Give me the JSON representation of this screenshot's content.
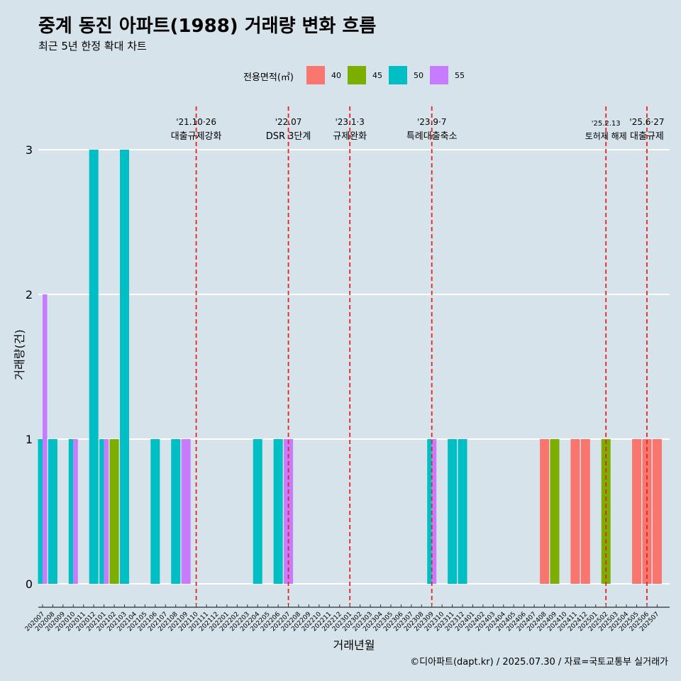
{
  "title": "중계 동진 아파트(1988) 거래량 변화 흐름",
  "subtitle": "최근 5년 한정 확대 차트",
  "caption": "©디아파트(dapt.kr) / 2025.07.30 / 자료=국토교통부 실거래가",
  "colors": {
    "40": "#f8766d",
    "45": "#7cae00",
    "50": "#00bfc4",
    "55": "#c77cff",
    "background": "#d6e3ea",
    "event_line": "#e8231f"
  },
  "chart_data": {
    "type": "bar",
    "title": "중계 동진 아파트(1988) 거래량 변화 흐름",
    "subtitle": "최근 5년 한정 확대 차트",
    "xlabel": "거래년월",
    "ylabel": "거래량(건)",
    "ylim": [
      0,
      3
    ],
    "yticks": [
      0,
      1,
      2,
      3
    ],
    "grid": true,
    "legend": {
      "title": "전용면적(㎡)",
      "position": "top",
      "entries": [
        "40",
        "45",
        "50",
        "55"
      ]
    },
    "categories": [
      "202007",
      "202008",
      "202009",
      "202010",
      "202011",
      "202012",
      "202101",
      "202102",
      "202103",
      "202104",
      "202105",
      "202106",
      "202107",
      "202108",
      "202109",
      "202110",
      "202111",
      "202112",
      "202201",
      "202202",
      "202203",
      "202204",
      "202205",
      "202206",
      "202207",
      "202208",
      "202209",
      "202210",
      "202211",
      "202212",
      "202301",
      "202302",
      "202303",
      "202304",
      "202305",
      "202306",
      "202307",
      "202308",
      "202309",
      "202310",
      "202311",
      "202312",
      "202401",
      "202402",
      "202403",
      "202404",
      "202405",
      "202406",
      "202407",
      "202408",
      "202409",
      "202410",
      "202411",
      "202412",
      "202501",
      "202502",
      "202503",
      "202504",
      "202505",
      "202506",
      "202507"
    ],
    "bars": [
      {
        "month": "202007",
        "area": "50",
        "value": 1
      },
      {
        "month": "202007",
        "area": "55",
        "value": 2
      },
      {
        "month": "202008",
        "area": "50",
        "value": 1
      },
      {
        "month": "202010",
        "area": "50",
        "value": 1
      },
      {
        "month": "202010",
        "area": "55",
        "value": 1
      },
      {
        "month": "202012",
        "area": "50",
        "value": 3
      },
      {
        "month": "202101",
        "area": "50",
        "value": 1
      },
      {
        "month": "202101",
        "area": "55",
        "value": 1
      },
      {
        "month": "202102",
        "area": "45",
        "value": 1
      },
      {
        "month": "202103",
        "area": "50",
        "value": 3
      },
      {
        "month": "202106",
        "area": "50",
        "value": 1
      },
      {
        "month": "202108",
        "area": "50",
        "value": 1
      },
      {
        "month": "202109",
        "area": "55",
        "value": 1
      },
      {
        "month": "202204",
        "area": "50",
        "value": 1
      },
      {
        "month": "202206",
        "area": "50",
        "value": 1
      },
      {
        "month": "202207",
        "area": "55",
        "value": 1
      },
      {
        "month": "202309",
        "area": "50",
        "value": 1
      },
      {
        "month": "202309",
        "area": "55",
        "value": 1
      },
      {
        "month": "202311",
        "area": "50",
        "value": 1
      },
      {
        "month": "202312",
        "area": "50",
        "value": 1
      },
      {
        "month": "202408",
        "area": "40",
        "value": 1
      },
      {
        "month": "202409",
        "area": "45",
        "value": 1
      },
      {
        "month": "202411",
        "area": "40",
        "value": 1
      },
      {
        "month": "202412",
        "area": "40",
        "value": 1
      },
      {
        "month": "202502",
        "area": "45",
        "value": 1
      },
      {
        "month": "202505",
        "area": "40",
        "value": 1
      },
      {
        "month": "202506",
        "area": "40",
        "value": 1
      },
      {
        "month": "202507",
        "area": "40",
        "value": 1
      }
    ],
    "events": [
      {
        "month": "202110",
        "date": "'21.10·26",
        "label": "대출규제강화"
      },
      {
        "month": "202207",
        "date": "'22.07",
        "label": "DSR 3단계"
      },
      {
        "month": "202301",
        "date": "'23.1·3",
        "label": "규제완화"
      },
      {
        "month": "202309",
        "date": "'23.9·7",
        "label": "특례대출축소"
      },
      {
        "month": "202502",
        "date": "'25.2.13",
        "label": "토허제 해제"
      },
      {
        "month": "202506",
        "date": "'25.6·27",
        "label": "대출규제"
      }
    ]
  }
}
